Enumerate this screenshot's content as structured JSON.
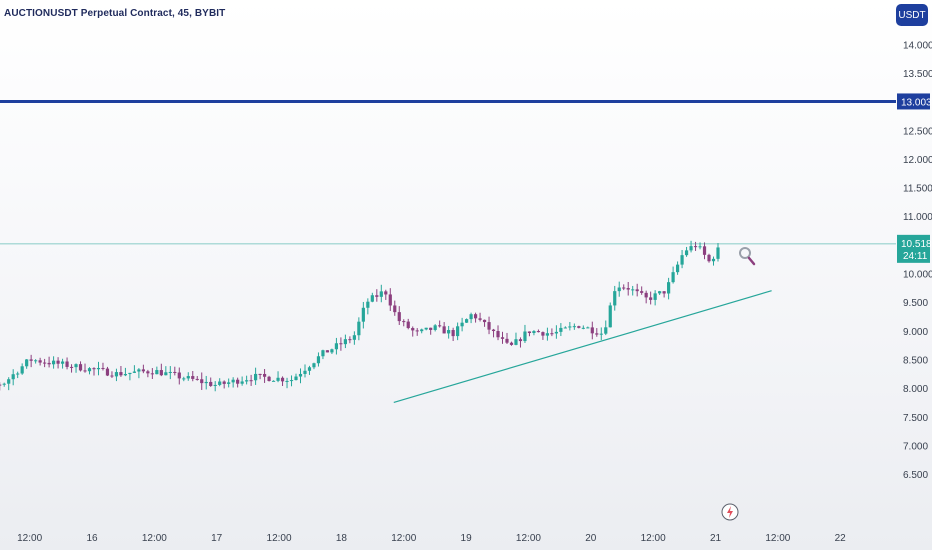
{
  "header": {
    "title": "AUCTIONUSDT Perpetual Contract, 45, BYBIT",
    "currency_button": "USDT"
  },
  "colors": {
    "up": "#26a69a",
    "down": "#8c3f7f",
    "resistance": "#1e3f9e",
    "last_price": "#26a69a",
    "trendline": "#26a69a"
  },
  "chart_data": {
    "type": "candlestick",
    "symbol": "AUCTIONUSDT",
    "interval": "45",
    "exchange": "BYBIT",
    "y_ticks": [
      "14.000",
      "13.500",
      "12.500",
      "12.000",
      "11.500",
      "11.000",
      "10.000",
      "9.500",
      "9.000",
      "8.500",
      "8.000",
      "7.500",
      "7.000",
      "6.500"
    ],
    "y_tick_values": [
      14.0,
      13.5,
      12.5,
      12.0,
      11.5,
      11.0,
      10.0,
      9.5,
      9.0,
      8.5,
      8.0,
      7.5,
      7.0,
      6.5
    ],
    "ylim": [
      6.1,
      14.25
    ],
    "x_ticks": [
      {
        "label": "12:00",
        "t": 0.5
      },
      {
        "label": "16",
        "t": 1.0
      },
      {
        "label": "12:00",
        "t": 1.5
      },
      {
        "label": "17",
        "t": 2.0
      },
      {
        "label": "12:00",
        "t": 2.5
      },
      {
        "label": "18",
        "t": 3.0
      },
      {
        "label": "12:00",
        "t": 3.5
      },
      {
        "label": "19",
        "t": 4.0
      },
      {
        "label": "12:00",
        "t": 4.5
      },
      {
        "label": "20",
        "t": 5.0
      },
      {
        "label": "12:00",
        "t": 5.5
      },
      {
        "label": "21",
        "t": 6.0
      },
      {
        "label": "12:00",
        "t": 6.5
      },
      {
        "label": "22",
        "t": 7.0
      }
    ],
    "resistance_line": {
      "value": 13.003,
      "label": "13.003"
    },
    "last_price": {
      "value": 10.518,
      "label": "10.518",
      "countdown": "24:11"
    },
    "trendline": {
      "from": {
        "t": 3.42,
        "price": 7.75
      },
      "to": {
        "t": 6.45,
        "price": 9.7
      }
    },
    "key_points": [
      {
        "t": -0.1,
        "price": 7.85
      },
      {
        "t": 0.3,
        "price": 8.1
      },
      {
        "t": 0.5,
        "price": 8.5
      },
      {
        "t": 0.8,
        "price": 8.4
      },
      {
        "t": 1.2,
        "price": 8.25
      },
      {
        "t": 1.5,
        "price": 8.3
      },
      {
        "t": 2.0,
        "price": 8.05
      },
      {
        "t": 2.3,
        "price": 8.2
      },
      {
        "t": 2.6,
        "price": 8.15
      },
      {
        "t": 2.85,
        "price": 8.6
      },
      {
        "t": 3.1,
        "price": 8.9
      },
      {
        "t": 3.2,
        "price": 9.5
      },
      {
        "t": 3.35,
        "price": 9.7
      },
      {
        "t": 3.45,
        "price": 9.2
      },
      {
        "t": 3.6,
        "price": 8.95
      },
      {
        "t": 3.75,
        "price": 9.05
      },
      {
        "t": 3.9,
        "price": 8.95
      },
      {
        "t": 4.05,
        "price": 9.3
      },
      {
        "t": 4.2,
        "price": 9.0
      },
      {
        "t": 4.35,
        "price": 8.7
      },
      {
        "t": 4.5,
        "price": 9.0
      },
      {
        "t": 4.7,
        "price": 8.95
      },
      {
        "t": 4.9,
        "price": 9.1
      },
      {
        "t": 5.1,
        "price": 8.95
      },
      {
        "t": 5.2,
        "price": 9.8
      },
      {
        "t": 5.3,
        "price": 9.75
      },
      {
        "t": 5.45,
        "price": 9.55
      },
      {
        "t": 5.6,
        "price": 9.7
      },
      {
        "t": 5.75,
        "price": 10.4
      },
      {
        "t": 5.85,
        "price": 10.5
      },
      {
        "t": 5.95,
        "price": 10.2
      },
      {
        "t": 6.05,
        "price": 10.5
      }
    ],
    "seed": 7
  }
}
